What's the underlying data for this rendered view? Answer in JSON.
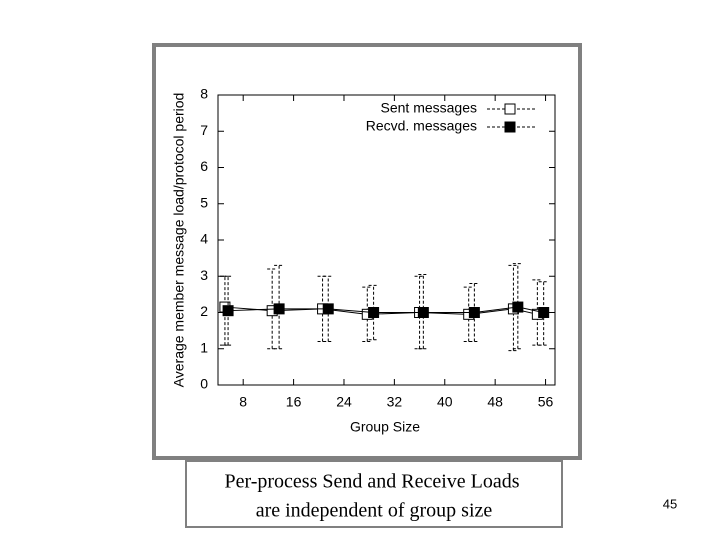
{
  "chart_data": {
    "type": "errorbar",
    "xlabel": "Group Size",
    "ylabel": "Average member message load/protocol period",
    "xlim": [
      4,
      57.5
    ],
    "xticks": [
      8,
      16,
      24,
      32,
      40,
      48,
      56
    ],
    "ylim": [
      0,
      8
    ],
    "yticks": [
      0,
      1,
      2,
      3,
      4,
      5,
      6,
      7,
      8
    ],
    "legend": "top-right",
    "series": [
      {
        "name": "Sent messages",
        "color": "#000000",
        "marker": "open-square",
        "x": [
          5.1,
          12.6,
          20.6,
          27.7,
          36.0,
          43.8,
          50.9,
          54.7
        ],
        "values": [
          2.15,
          2.05,
          2.1,
          1.95,
          2.0,
          1.95,
          2.1,
          1.95
        ],
        "low": [
          1.1,
          1.0,
          1.2,
          1.2,
          1.0,
          1.2,
          0.95,
          1.1
        ],
        "high": [
          3.0,
          3.2,
          3.0,
          2.7,
          3.0,
          2.7,
          3.3,
          2.9
        ]
      },
      {
        "name": "Recvd. messages",
        "color": "#000000",
        "marker": "filled-square",
        "x": [
          5.6,
          13.7,
          21.5,
          28.7,
          36.6,
          44.7,
          51.6,
          55.7
        ],
        "values": [
          2.05,
          2.1,
          2.1,
          2.0,
          2.0,
          2.0,
          2.15,
          2.0
        ],
        "low": [
          1.1,
          1.0,
          1.2,
          1.25,
          1.0,
          1.2,
          1.0,
          1.1
        ],
        "high": [
          3.0,
          3.3,
          3.0,
          2.75,
          3.05,
          2.8,
          3.35,
          2.85
        ]
      }
    ]
  },
  "caption": [
    "Per-process Send and Receive Loads",
    "are independent of group size"
  ],
  "page_number": "45"
}
